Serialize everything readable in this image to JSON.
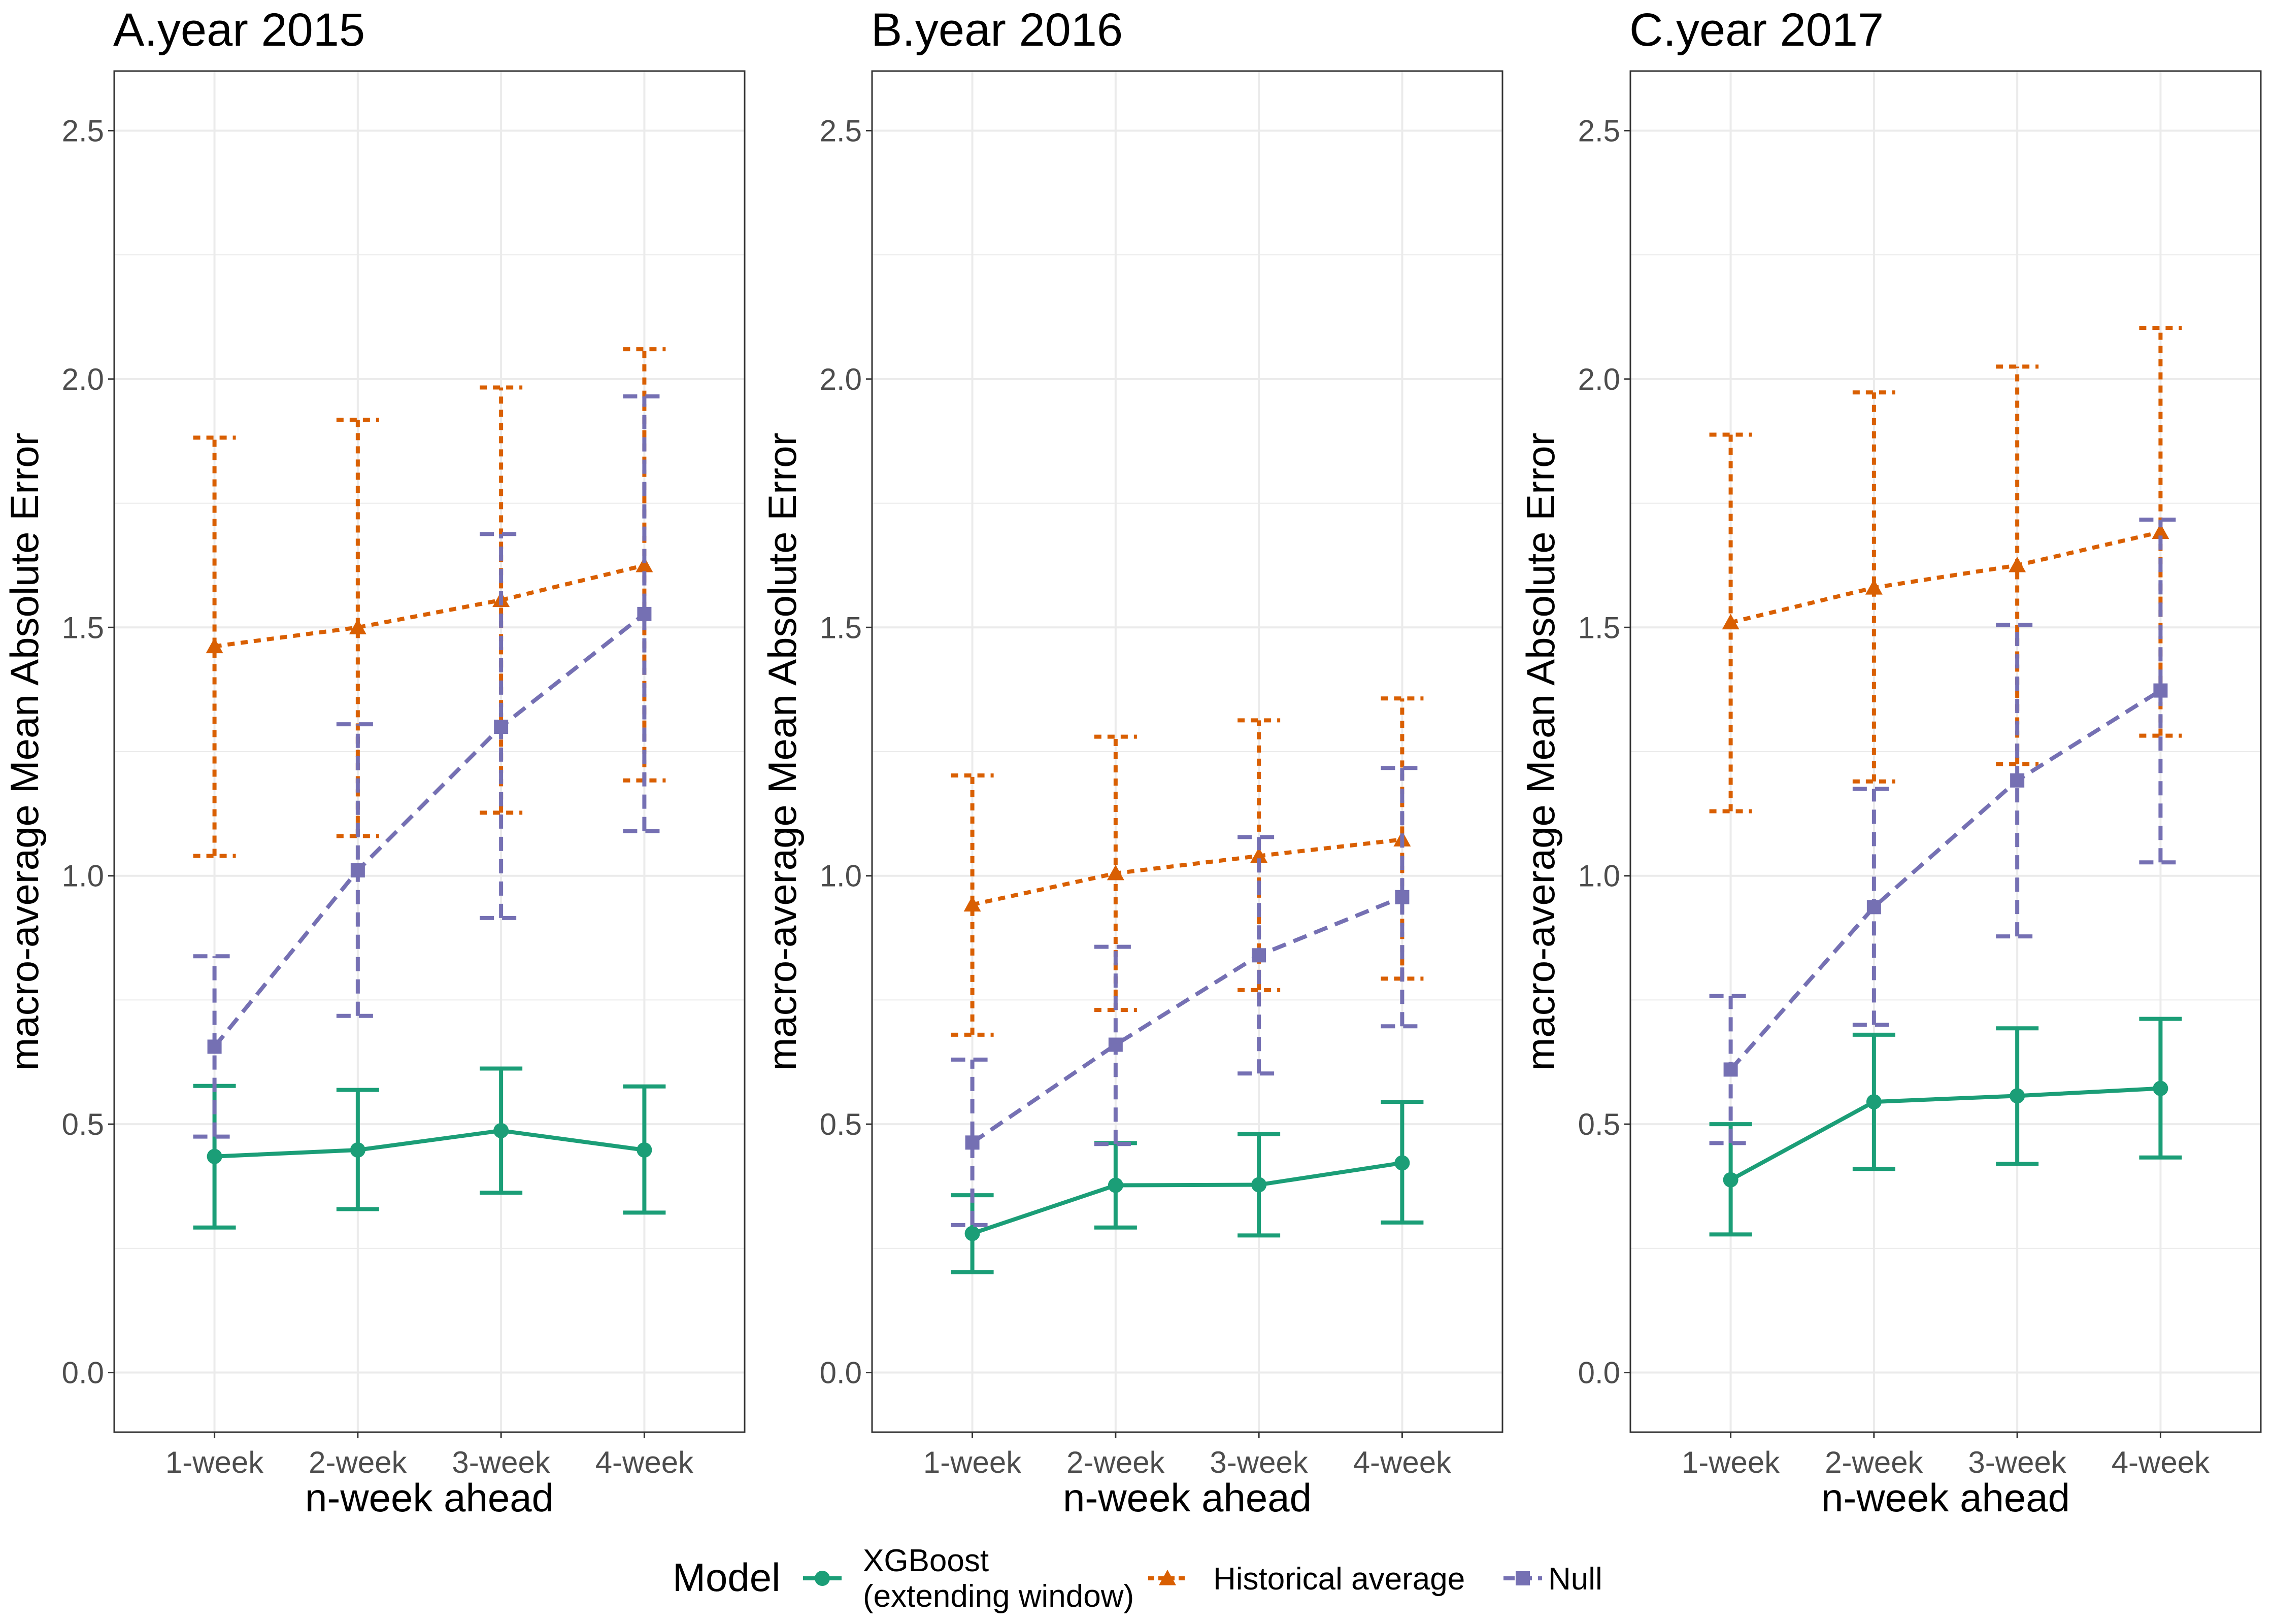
{
  "colors": {
    "xgboost": "#1b9e77",
    "historical": "#d95f02",
    "null": "#7570b3",
    "grid": "#ebebeb",
    "border": "#333333",
    "tick_text": "#4d4d4d"
  },
  "legend": {
    "title": "Model",
    "items": [
      {
        "label_lines": [
          "XGBoost",
          "(extending window)"
        ],
        "color": "#1b9e77",
        "shape": "circle",
        "linetype": "solid"
      },
      {
        "label_lines": [
          "Historical average"
        ],
        "color": "#d95f02",
        "shape": "triangle",
        "linetype": "dotted"
      },
      {
        "label_lines": [
          "Null"
        ],
        "color": "#7570b3",
        "shape": "square",
        "linetype": "dashed"
      }
    ]
  },
  "chart_data": [
    {
      "type": "line",
      "title": "A.year 2015",
      "xlabel": "n-week ahead",
      "ylabel": "macro-average Mean Absolute Error",
      "categories": [
        "1-week",
        "2-week",
        "3-week",
        "4-week"
      ],
      "y_ticks": [
        "0.0",
        "0.5",
        "1.0",
        "1.5",
        "2.0",
        "2.5"
      ],
      "ylim": [
        -0.12,
        2.62
      ],
      "grid": true,
      "series": [
        {
          "name": "XGBoost (extending window)",
          "values": [
            0.435,
            0.448,
            0.487,
            0.448
          ],
          "lower": [
            0.292,
            0.329,
            0.362,
            0.322
          ],
          "upper": [
            0.577,
            0.569,
            0.612,
            0.576
          ]
        },
        {
          "name": "Historical average",
          "values": [
            1.462,
            1.5,
            1.555,
            1.625
          ],
          "lower": [
            1.04,
            1.08,
            1.127,
            1.192
          ],
          "upper": [
            1.882,
            1.918,
            1.983,
            2.06
          ]
        },
        {
          "name": "Null",
          "values": [
            0.656,
            1.011,
            1.3,
            1.527
          ],
          "lower": [
            0.475,
            0.718,
            0.915,
            1.09
          ],
          "upper": [
            0.838,
            1.305,
            1.688,
            1.965
          ]
        }
      ]
    },
    {
      "type": "line",
      "title": "B.year 2016",
      "xlabel": "n-week ahead",
      "ylabel": "macro-average Mean Absolute Error",
      "categories": [
        "1-week",
        "2-week",
        "3-week",
        "4-week"
      ],
      "y_ticks": [
        "0.0",
        "0.5",
        "1.0",
        "1.5",
        "2.0",
        "2.5"
      ],
      "ylim": [
        -0.12,
        2.62
      ],
      "grid": true,
      "series": [
        {
          "name": "XGBoost (extending window)",
          "values": [
            0.28,
            0.377,
            0.378,
            0.422
          ],
          "lower": [
            0.202,
            0.292,
            0.276,
            0.302
          ],
          "upper": [
            0.357,
            0.462,
            0.48,
            0.545
          ]
        },
        {
          "name": "Historical average",
          "values": [
            0.942,
            1.005,
            1.04,
            1.073
          ],
          "lower": [
            0.68,
            0.73,
            0.77,
            0.793
          ],
          "upper": [
            1.202,
            1.28,
            1.313,
            1.357
          ]
        },
        {
          "name": "Null",
          "values": [
            0.463,
            0.66,
            0.84,
            0.957
          ],
          "lower": [
            0.297,
            0.46,
            0.602,
            0.697
          ],
          "upper": [
            0.63,
            0.857,
            1.078,
            1.217
          ]
        }
      ]
    },
    {
      "type": "line",
      "title": "C.year 2017",
      "xlabel": "n-week ahead",
      "ylabel": "macro-average Mean Absolute Error",
      "categories": [
        "1-week",
        "2-week",
        "3-week",
        "4-week"
      ],
      "y_ticks": [
        "0.0",
        "0.5",
        "1.0",
        "1.5",
        "2.0",
        "2.5"
      ],
      "ylim": [
        -0.12,
        2.62
      ],
      "grid": true,
      "series": [
        {
          "name": "XGBoost (extending window)",
          "values": [
            0.388,
            0.545,
            0.557,
            0.572
          ],
          "lower": [
            0.278,
            0.41,
            0.42,
            0.433
          ],
          "upper": [
            0.5,
            0.68,
            0.693,
            0.712
          ]
        },
        {
          "name": "Historical average",
          "values": [
            1.51,
            1.58,
            1.625,
            1.692
          ],
          "lower": [
            1.13,
            1.19,
            1.225,
            1.282
          ],
          "upper": [
            1.888,
            1.973,
            2.025,
            2.103
          ]
        },
        {
          "name": "Null",
          "values": [
            0.61,
            0.937,
            1.192,
            1.373
          ],
          "lower": [
            0.462,
            0.7,
            0.878,
            1.027
          ],
          "upper": [
            0.758,
            1.175,
            1.505,
            1.717
          ]
        }
      ]
    }
  ]
}
